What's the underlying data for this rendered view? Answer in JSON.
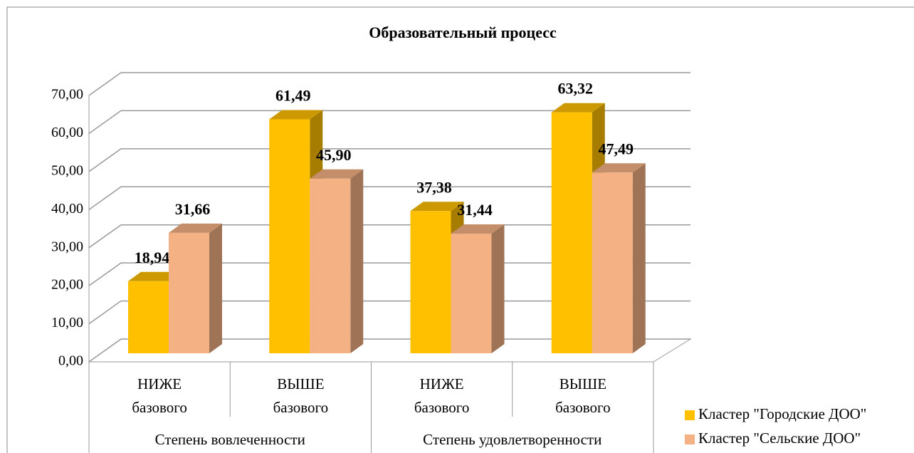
{
  "chart_data": {
    "type": "bar3d",
    "title": "Образовательный процесс",
    "categories": [
      "НИЖЕ базового",
      "ВЫШЕ базового",
      "НИЖЕ базового",
      "ВЫШЕ базового"
    ],
    "groups": [
      "Степень вовлеченности",
      "Степень удовлетворенности"
    ],
    "series": [
      {
        "name": "Кластер \"Городские ДОО\"",
        "color": "#FFC000",
        "values": [
          18.94,
          61.49,
          37.38,
          63.32
        ],
        "value_labels": [
          "18,94",
          "61,49",
          "37,38",
          "63,32"
        ]
      },
      {
        "name": "Кластер \"Сельские ДОО\"",
        "color": "#F4B183",
        "values": [
          31.66,
          45.9,
          31.44,
          47.49
        ],
        "value_labels": [
          "31,66",
          "45,90",
          "31,44",
          "47,49"
        ]
      }
    ],
    "ylim": [
      0,
      70
    ],
    "yticks": [
      {
        "value": 0,
        "label": "0,00"
      },
      {
        "value": 10,
        "label": "10,00"
      },
      {
        "value": 20,
        "label": "20,00"
      },
      {
        "value": 30,
        "label": "30,00"
      },
      {
        "value": 40,
        "label": "40,00"
      },
      {
        "value": 50,
        "label": "50,00"
      },
      {
        "value": 60,
        "label": "60,00"
      },
      {
        "value": 70,
        "label": "70,00"
      }
    ],
    "grid": true,
    "legend": "bottom-right"
  }
}
